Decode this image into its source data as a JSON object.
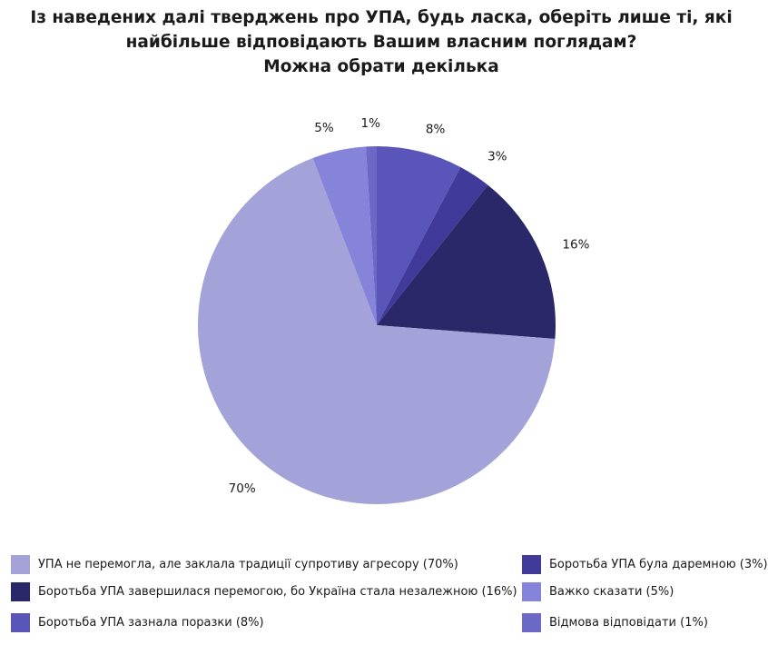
{
  "title": {
    "line1": "Із наведених далі тверджень про УПА, будь ласка, оберіть лише ті, які",
    "line2": "найбільше відповідають Вашим власним поглядам?",
    "line3": "Можна обрати декілька"
  },
  "chart_data": {
    "type": "pie",
    "start_angle_deg": 0,
    "direction": "clockwise",
    "title": "Із наведених далі тверджень про УПА, будь ласка, оберіть лише ті, які найбільше відповідають Вашим власним поглядам? Можна обрати декілька",
    "slices": [
      {
        "label": "Боротьба УПА зазнала поразки (8%)",
        "value": 8,
        "value_label": "8%",
        "color": "#5a56b9"
      },
      {
        "label": "Боротьба УПА була даремною (3%)",
        "value": 3,
        "value_label": "3%",
        "color": "#403a9a"
      },
      {
        "label": "Боротьба УПА завершилася перемогою, бо Україна стала незалежною (16%)",
        "value": 16,
        "value_label": "16%",
        "color": "#2a2868"
      },
      {
        "label": "УПА не перемогла, але заклала традиції супротиву агресору (70%)",
        "value": 70,
        "value_label": "70%",
        "color": "#a3a3da"
      },
      {
        "label": "Важко сказати (5%)",
        "value": 5,
        "value_label": "5%",
        "color": "#8683da"
      },
      {
        "label": "Відмова відповідати (1%)",
        "value": 1,
        "value_label": "1%",
        "color": "#6b68c6"
      }
    ],
    "legend_order": [
      "УПА не перемогла, але заклала традиції супротиву агресору (70%)",
      "Боротьба УПА була даремною (3%)",
      "Боротьба УПА завершилася перемогою, бо Україна стала незалежною (16%)",
      "Важко сказати (5%)",
      "Боротьба УПА зазнала поразки (8%)",
      "Відмова відповідати (1%)"
    ],
    "legend_position": "bottom"
  }
}
